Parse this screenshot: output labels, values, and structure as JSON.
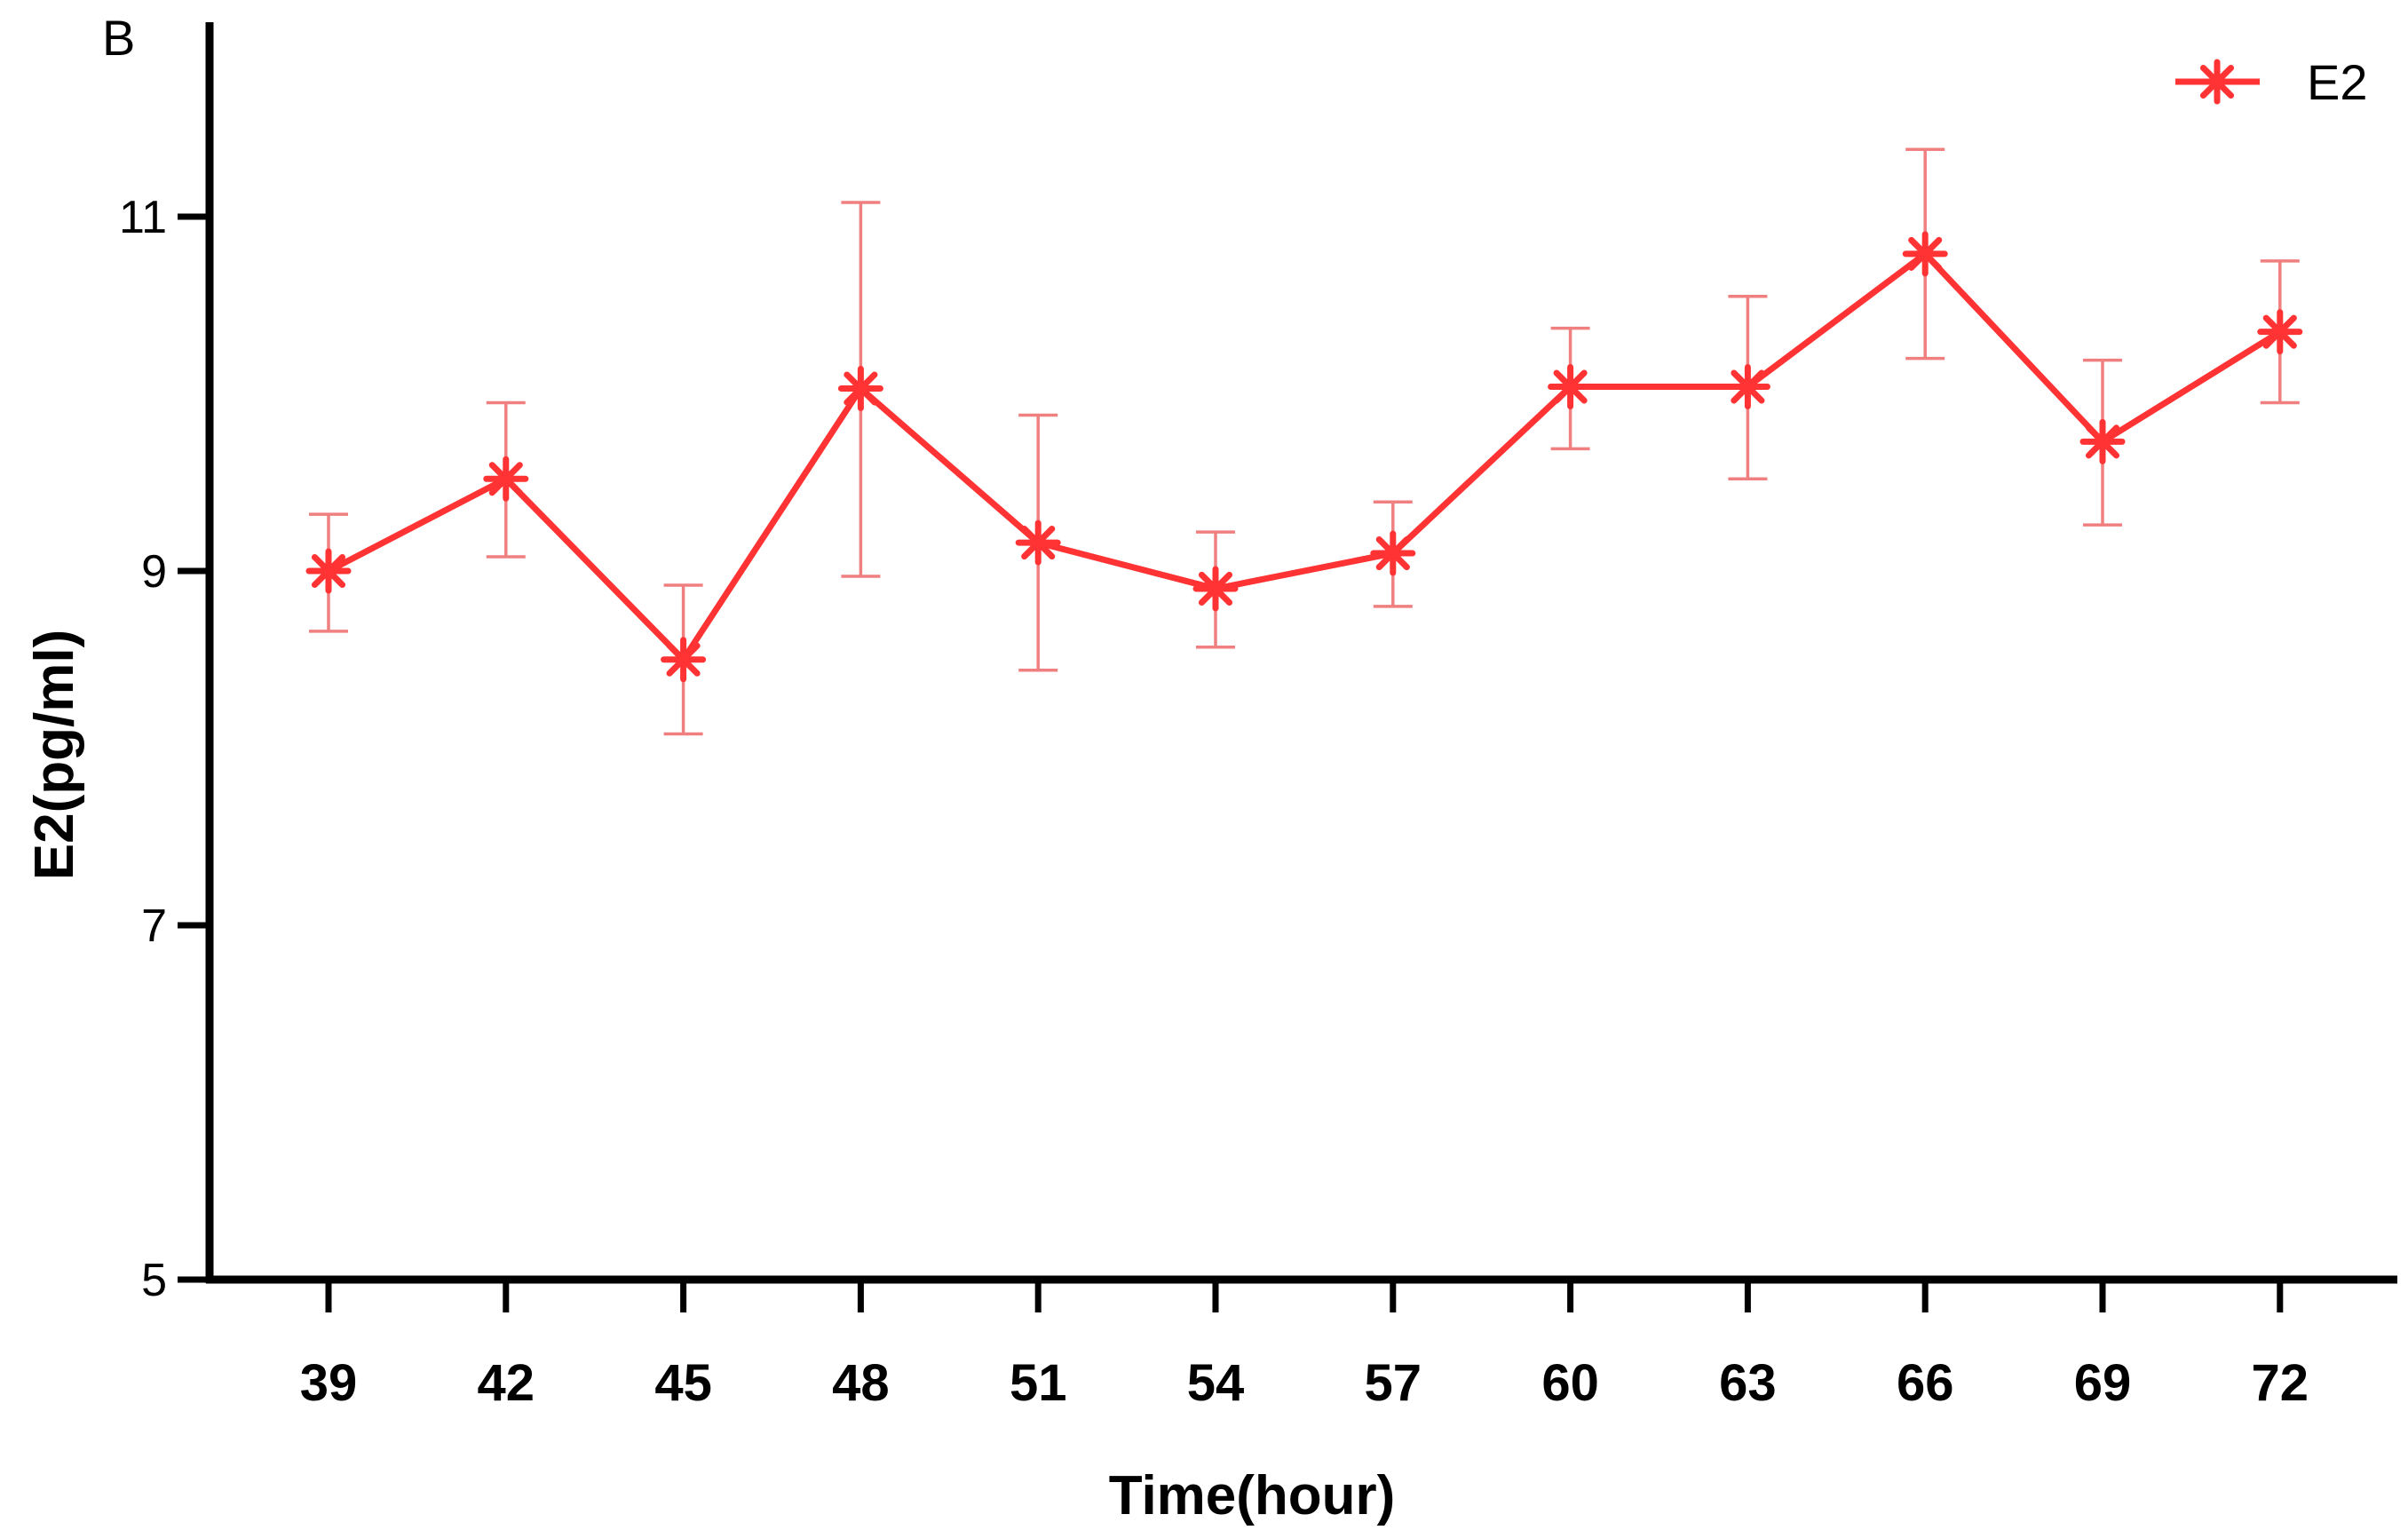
{
  "panel_label": "B",
  "colors": {
    "series": "#FF3333",
    "error_bar": "#F08080",
    "axis": "#000000"
  },
  "chart_data": {
    "type": "line",
    "title": "",
    "xlabel": "Time(hour)",
    "ylabel": "E2(pg/ml)",
    "x": [
      39,
      42,
      45,
      48,
      51,
      54,
      57,
      60,
      63,
      66,
      69,
      72
    ],
    "x_tick_labels": [
      "39",
      "42",
      "45",
      "48",
      "51",
      "54",
      "57",
      "60",
      "63",
      "66",
      "69",
      "72"
    ],
    "ylim": [
      5,
      12
    ],
    "y_ticks": [
      5,
      7,
      9,
      11
    ],
    "y_tick_labels": [
      "5",
      "7",
      "9",
      "11"
    ],
    "legend_position": "top-right",
    "series": [
      {
        "name": "E2",
        "marker": "asterisk",
        "values": [
          9.0,
          9.52,
          8.5,
          10.03,
          9.16,
          8.9,
          9.1,
          10.04,
          10.04,
          10.79,
          9.73,
          10.35
        ],
        "error_upper": [
          9.32,
          9.95,
          8.92,
          11.08,
          9.88,
          9.22,
          9.39,
          10.37,
          10.55,
          11.38,
          10.19,
          10.75
        ],
        "error_lower": [
          8.66,
          9.08,
          8.08,
          8.97,
          8.44,
          8.57,
          8.8,
          9.69,
          9.52,
          10.2,
          9.26,
          9.95
        ]
      }
    ]
  }
}
